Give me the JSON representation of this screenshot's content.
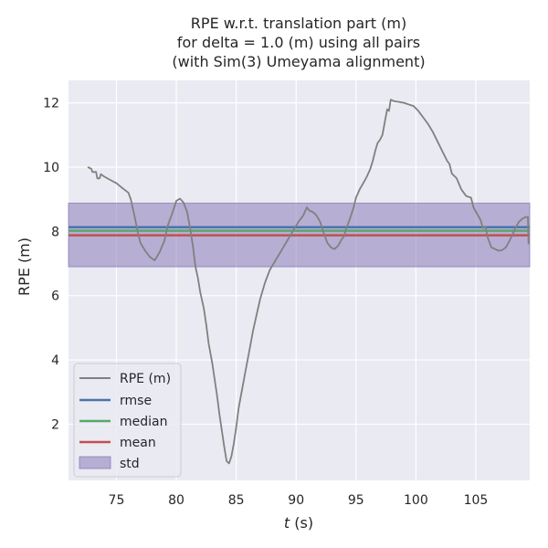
{
  "chart_data": {
    "type": "line",
    "title_lines": [
      "RPE w.r.t. translation part (m)",
      "for delta = 1.0 (m) using all pairs",
      "(with Sim(3) Umeyama alignment)"
    ],
    "xlabel_italic": "t",
    "xlabel_rest": " (s)",
    "ylabel": "RPE (m)",
    "xlim": [
      71.0,
      109.5
    ],
    "ylim": [
      0.25,
      12.7
    ],
    "xticks": [
      75,
      80,
      85,
      90,
      95,
      100,
      105
    ],
    "yticks": [
      2,
      4,
      6,
      8,
      10,
      12
    ],
    "grid": true,
    "legend_position": "lower-left",
    "background": "#eaeaf2",
    "series": [
      {
        "name": "RPE (m)",
        "color": "#808080",
        "points": [
          [
            72.6,
            10.0
          ],
          [
            72.9,
            9.95
          ],
          [
            73.0,
            9.85
          ],
          [
            73.3,
            9.85
          ],
          [
            73.4,
            9.65
          ],
          [
            73.6,
            9.65
          ],
          [
            73.7,
            9.78
          ],
          [
            74.0,
            9.7
          ],
          [
            74.5,
            9.6
          ],
          [
            75.0,
            9.5
          ],
          [
            75.5,
            9.35
          ],
          [
            76.0,
            9.2
          ],
          [
            76.2,
            9.0
          ],
          [
            76.5,
            8.5
          ],
          [
            76.8,
            7.95
          ],
          [
            77.0,
            7.65
          ],
          [
            77.4,
            7.4
          ],
          [
            77.8,
            7.2
          ],
          [
            78.2,
            7.1
          ],
          [
            78.6,
            7.35
          ],
          [
            79.0,
            7.7
          ],
          [
            79.3,
            8.2
          ],
          [
            79.7,
            8.6
          ],
          [
            80.0,
            8.95
          ],
          [
            80.3,
            9.02
          ],
          [
            80.6,
            8.9
          ],
          [
            80.9,
            8.6
          ],
          [
            81.2,
            8.0
          ],
          [
            81.4,
            7.5
          ],
          [
            81.6,
            6.9
          ],
          [
            81.8,
            6.55
          ],
          [
            82.0,
            6.1
          ],
          [
            82.3,
            5.6
          ],
          [
            82.5,
            5.1
          ],
          [
            82.7,
            4.5
          ],
          [
            83.0,
            3.9
          ],
          [
            83.2,
            3.4
          ],
          [
            83.4,
            2.9
          ],
          [
            83.6,
            2.3
          ],
          [
            83.8,
            1.8
          ],
          [
            84.0,
            1.3
          ],
          [
            84.2,
            0.85
          ],
          [
            84.4,
            0.78
          ],
          [
            84.6,
            1.0
          ],
          [
            84.8,
            1.4
          ],
          [
            85.0,
            1.9
          ],
          [
            85.2,
            2.5
          ],
          [
            85.5,
            3.1
          ],
          [
            85.8,
            3.7
          ],
          [
            86.1,
            4.3
          ],
          [
            86.4,
            4.9
          ],
          [
            86.7,
            5.4
          ],
          [
            87.0,
            5.9
          ],
          [
            87.4,
            6.4
          ],
          [
            87.8,
            6.8
          ],
          [
            88.2,
            7.05
          ],
          [
            88.6,
            7.3
          ],
          [
            89.0,
            7.55
          ],
          [
            89.4,
            7.8
          ],
          [
            89.8,
            8.05
          ],
          [
            90.2,
            8.3
          ],
          [
            90.6,
            8.5
          ],
          [
            90.9,
            8.75
          ],
          [
            91.1,
            8.65
          ],
          [
            91.4,
            8.6
          ],
          [
            91.7,
            8.5
          ],
          [
            92.0,
            8.3
          ],
          [
            92.3,
            7.95
          ],
          [
            92.6,
            7.65
          ],
          [
            92.9,
            7.5
          ],
          [
            93.2,
            7.45
          ],
          [
            93.5,
            7.55
          ],
          [
            93.8,
            7.75
          ],
          [
            94.0,
            7.85
          ],
          [
            94.2,
            8.1
          ],
          [
            94.5,
            8.4
          ],
          [
            94.8,
            8.75
          ],
          [
            95.0,
            9.05
          ],
          [
            95.3,
            9.3
          ],
          [
            95.6,
            9.5
          ],
          [
            95.9,
            9.7
          ],
          [
            96.2,
            9.95
          ],
          [
            96.4,
            10.2
          ],
          [
            96.6,
            10.5
          ],
          [
            96.8,
            10.75
          ],
          [
            97.0,
            10.85
          ],
          [
            97.2,
            11.0
          ],
          [
            97.4,
            11.4
          ],
          [
            97.6,
            11.8
          ],
          [
            97.75,
            11.75
          ],
          [
            97.9,
            12.1
          ],
          [
            98.2,
            12.05
          ],
          [
            98.6,
            12.03
          ],
          [
            99.0,
            12.0
          ],
          [
            99.4,
            11.95
          ],
          [
            99.8,
            11.9
          ],
          [
            100.2,
            11.75
          ],
          [
            100.6,
            11.55
          ],
          [
            101.0,
            11.35
          ],
          [
            101.4,
            11.1
          ],
          [
            101.8,
            10.8
          ],
          [
            102.2,
            10.5
          ],
          [
            102.6,
            10.2
          ],
          [
            102.8,
            10.1
          ],
          [
            103.0,
            9.8
          ],
          [
            103.4,
            9.65
          ],
          [
            103.8,
            9.3
          ],
          [
            104.2,
            9.1
          ],
          [
            104.6,
            9.05
          ],
          [
            104.8,
            8.75
          ],
          [
            105.1,
            8.55
          ],
          [
            105.4,
            8.35
          ],
          [
            105.6,
            8.1
          ],
          [
            105.8,
            8.15
          ],
          [
            106.0,
            7.8
          ],
          [
            106.3,
            7.5
          ],
          [
            106.6,
            7.45
          ],
          [
            106.9,
            7.4
          ],
          [
            107.2,
            7.42
          ],
          [
            107.5,
            7.5
          ],
          [
            107.8,
            7.7
          ],
          [
            108.0,
            7.85
          ],
          [
            108.3,
            8.1
          ],
          [
            108.6,
            8.3
          ],
          [
            108.9,
            8.4
          ],
          [
            109.2,
            8.45
          ],
          [
            109.35,
            8.45
          ],
          [
            109.4,
            7.6
          ]
        ]
      },
      {
        "name": "rmse",
        "color": "#4c72b0",
        "value": 8.13
      },
      {
        "name": "median",
        "color": "#55a868",
        "value": 8.02
      },
      {
        "name": "mean",
        "color": "#c44e52",
        "value": 7.88
      },
      {
        "name": "std",
        "color": "#8172b3",
        "value_range": [
          6.9,
          8.88
        ]
      }
    ]
  }
}
